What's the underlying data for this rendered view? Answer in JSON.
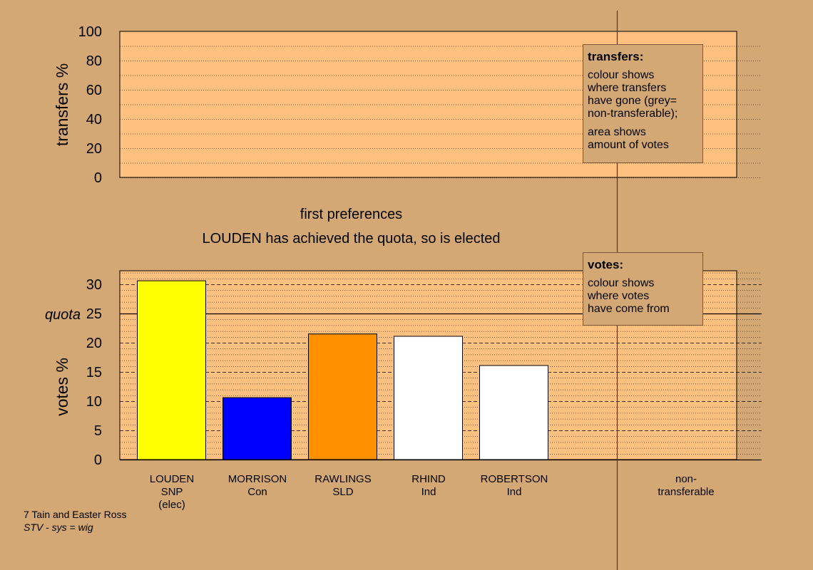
{
  "chart_data": [
    {
      "type": "bar",
      "name": "transfers",
      "ylabel": "transfers %",
      "ylim": [
        0,
        100
      ],
      "yticks": [
        0,
        20,
        40,
        60,
        80,
        100
      ],
      "values": [],
      "legend": {
        "title": "transfers:",
        "lines1": [
          "colour shows",
          "where transfers",
          "have gone (grey=",
          "non-transferable);"
        ],
        "lines2": [
          "area shows",
          "amount of votes"
        ]
      }
    },
    {
      "type": "bar",
      "name": "votes",
      "ylabel": "votes %",
      "ylim": [
        0,
        32
      ],
      "yticks": [
        0,
        5,
        10,
        15,
        20,
        25,
        30
      ],
      "quota": 25,
      "quota_label": "quota",
      "categories": [
        {
          "lines": [
            "LOUDEN",
            "SNP",
            "(elec)"
          ],
          "value": 30.6,
          "color": "#ffff00"
        },
        {
          "lines": [
            "MORRISON",
            "Con"
          ],
          "value": 10.6,
          "color": "#0000ff"
        },
        {
          "lines": [
            "RAWLINGS",
            "SLD"
          ],
          "value": 21.5,
          "color": "#ff9000"
        },
        {
          "lines": [
            "RHIND",
            "Ind"
          ],
          "value": 21.1,
          "color": "#ffffff"
        },
        {
          "lines": [
            "ROBERTSON",
            "Ind"
          ],
          "value": 16.1,
          "color": "#ffffff"
        }
      ],
      "nontransferable_label": [
        "non-",
        "transferable"
      ],
      "legend": {
        "title": "votes:",
        "lines1": [
          "colour shows",
          "where votes",
          "have come from"
        ]
      }
    }
  ],
  "subtitle": "first preferences",
  "title": "LOUDEN has achieved the quota, so is elected",
  "footer": {
    "line1": "7 Tain and Easter Ross",
    "line2": "STV - sys = wig"
  },
  "colors": {
    "background": "#d4a874",
    "plot_bg": "#ffc080"
  }
}
